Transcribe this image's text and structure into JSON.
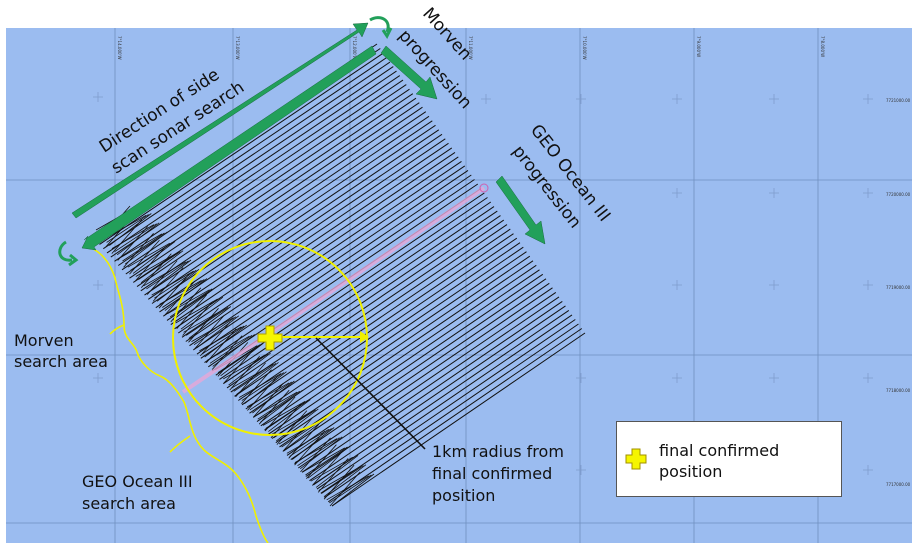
{
  "map": {
    "background": "#9bbcf0",
    "grid_color": "#6f8fbf"
  },
  "labels": {
    "direction_line1": "Direction of side",
    "direction_line2": "scan sonar search",
    "morven_prog_line1": "Morven",
    "morven_prog_line2": "progression",
    "geo_prog_line1": "GEO Ocean III",
    "geo_prog_line2": "progression",
    "morven_area_line1": "Morven",
    "morven_area_line2": "search area",
    "geo_area_line1": "GEO Ocean III",
    "geo_area_line2": "search area",
    "radius_line1": "1km radius from",
    "radius_line2": "final confirmed",
    "radius_line3": "position"
  },
  "grid_ticks": {
    "top": [
      "7°14.000'W",
      "7°13.000'W",
      "7°12.000'W",
      "7°11.000'W",
      "7°10.000'W",
      "7°9.000'W",
      "7°8.000'W"
    ],
    "right": [
      "7721000.00",
      "7720000.00",
      "7719000.00",
      "7718000.00",
      "7717000.00"
    ]
  },
  "legend": {
    "label": "final confirmed position",
    "label_line1": "final confirmed",
    "label_line2": "position",
    "symbol": "yellow-cross-icon",
    "symbol_color": "#f5f500"
  },
  "colors": {
    "arrow": "#22a05a",
    "circle": "#f0f000",
    "track": "#111111",
    "bracket": "#f0f000"
  }
}
